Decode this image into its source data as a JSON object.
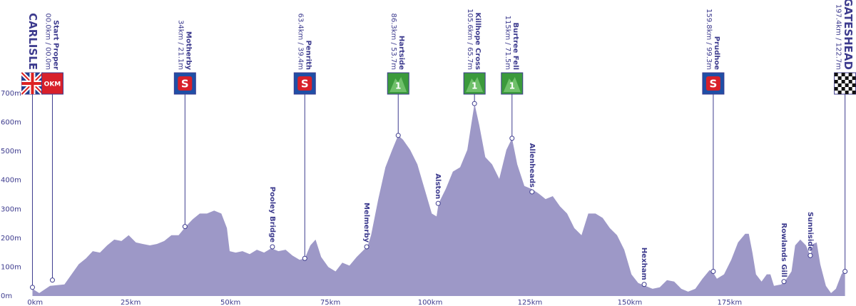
{
  "chart_data": {
    "type": "area",
    "color": "#9d98c7",
    "xlim": [
      -0.4,
      204.5
    ],
    "ylim": [
      0,
      700
    ],
    "xticks": [
      {
        "value": 0,
        "label": "0km"
      },
      {
        "value": 25,
        "label": "25km"
      },
      {
        "value": 50,
        "label": "50km"
      },
      {
        "value": 75,
        "label": "75km"
      },
      {
        "value": 100,
        "label": "100km"
      },
      {
        "value": 125,
        "label": "125km"
      },
      {
        "value": 150,
        "label": "150km"
      },
      {
        "value": 175,
        "label": "175km"
      }
    ],
    "yticks": [
      {
        "value": 0,
        "label": "0m"
      },
      {
        "value": 100,
        "label": "100m"
      },
      {
        "value": 200,
        "label": "200m"
      },
      {
        "value": 300,
        "label": "300m"
      },
      {
        "value": 400,
        "label": "400m"
      },
      {
        "value": 500,
        "label": "500m"
      },
      {
        "value": 600,
        "label": "600m"
      },
      {
        "value": 700,
        "label": "700m"
      }
    ],
    "x": [
      0.4,
      2.1,
      4.8,
      8.4,
      10.2,
      12.0,
      13.8,
      15.5,
      17.3,
      19.1,
      20.9,
      22.7,
      24.5,
      26.3,
      28.0,
      29.8,
      31.6,
      33.4,
      35.2,
      37.0,
      38.8,
      40.5,
      42.3,
      44.1,
      45.9,
      47.7,
      49.1,
      49.8,
      51.3,
      53.0,
      54.8,
      56.6,
      58.4,
      60.2,
      62.0,
      63.8,
      65.5,
      67.3,
      68.6,
      70.0,
      71.3,
      72.7,
      74.5,
      76.3,
      78.0,
      79.8,
      81.6,
      83.4,
      84.3,
      85.2,
      87.0,
      88.8,
      90.5,
      92.0,
      93.2,
      95.0,
      96.8,
      98.6,
      100.4,
      101.6,
      102.1,
      103.9,
      105.7,
      107.5,
      109.3,
      111.1,
      112.3,
      113.8,
      115.5,
      117.3,
      119.1,
      120.5,
      121.8,
      123.6,
      125.4,
      127.1,
      128.9,
      130.7,
      132.5,
      134.3,
      136.1,
      137.9,
      139.6,
      141.4,
      143.2,
      145.0,
      146.8,
      148.6,
      150.4,
      152.1,
      153.9,
      155.7,
      157.5,
      159.3,
      161.1,
      162.9,
      164.6,
      166.4,
      168.2,
      170.0,
      170.9,
      171.8,
      173.6,
      175.4,
      177.1,
      178.9,
      179.8,
      180.7,
      181.6,
      183.0,
      184.3,
      185.2,
      186.1,
      187.9,
      188.8,
      190.5,
      191.4,
      192.7,
      194.1,
      195.2,
      195.9,
      196.8,
      197.7,
      199.1,
      200.4,
      201.6,
      203.0,
      203.9
    ],
    "values": [
      25,
      10,
      35,
      40,
      75,
      110,
      130,
      155,
      150,
      175,
      195,
      190,
      210,
      185,
      180,
      175,
      180,
      190,
      210,
      210,
      240,
      265,
      285,
      285,
      295,
      285,
      235,
      155,
      150,
      155,
      145,
      160,
      150,
      165,
      155,
      160,
      140,
      125,
      130,
      175,
      195,
      135,
      100,
      85,
      115,
      105,
      135,
      160,
      170,
      210,
      335,
      445,
      505,
      555,
      540,
      505,
      455,
      370,
      285,
      275,
      320,
      370,
      430,
      445,
      505,
      665,
      590,
      480,
      455,
      405,
      505,
      545,
      455,
      380,
      370,
      355,
      335,
      345,
      310,
      285,
      235,
      210,
      285,
      285,
      270,
      235,
      210,
      160,
      75,
      45,
      35,
      25,
      30,
      55,
      50,
      25,
      15,
      25,
      60,
      90,
      80,
      60,
      75,
      125,
      185,
      215,
      215,
      150,
      75,
      50,
      75,
      75,
      35,
      40,
      50,
      85,
      175,
      195,
      175,
      140,
      180,
      185,
      110,
      35,
      10,
      25,
      75,
      90
    ],
    "markers": [
      {
        "name": "CARLISLE",
        "x": 0.4,
        "y": 30,
        "icon": "flag"
      },
      {
        "name": "Start Proper",
        "distance": "00.0km / 00.0m",
        "x": 5.4,
        "y": 55,
        "icon": "start",
        "icon_text": "OKM"
      },
      {
        "name": "Motherby",
        "distance": "34km / 21.1m",
        "x": 38.6,
        "y": 240,
        "icon": "sprint",
        "icon_text": "S"
      },
      {
        "name": "Penrith",
        "distance": "63.4km / 39.4m",
        "x": 68.6,
        "y": 130,
        "icon": "sprint",
        "icon_text": "S"
      },
      {
        "name": "Hartside",
        "distance": "86.3km / 53.7m",
        "x": 92.0,
        "y": 555,
        "icon": "climb",
        "icon_text": "1"
      },
      {
        "name": "Killhope Cross",
        "distance": "105.6km / 65.7m",
        "x": 111.1,
        "y": 665,
        "icon": "climb",
        "icon_text": "1"
      },
      {
        "name": "Burtree Fell",
        "distance": "115km / 71.5m",
        "x": 120.5,
        "y": 545,
        "icon": "climb",
        "icon_text": "1"
      },
      {
        "name": "Prudhoe",
        "distance": "159.8km / 99.3m",
        "x": 170.9,
        "y": 85,
        "icon": "sprint",
        "icon_text": "S"
      },
      {
        "name": "GATESHEAD",
        "distance": "197.4km / 122.7m",
        "x": 203.9,
        "y": 85,
        "icon": "finish"
      }
    ],
    "towns": [
      {
        "name": "Pooley Bridge",
        "x": 60.5,
        "y": 170
      },
      {
        "name": "Melmerby",
        "x": 84.1,
        "y": 170
      },
      {
        "name": "Alston",
        "x": 102.0,
        "y": 320
      },
      {
        "name": "Allenheads",
        "x": 125.5,
        "y": 360
      },
      {
        "name": "Hexham",
        "x": 153.6,
        "y": 40
      },
      {
        "name": "Rowlands Gill",
        "x": 188.6,
        "y": 50
      },
      {
        "name": "Sunniside",
        "x": 195.2,
        "y": 140
      }
    ]
  }
}
